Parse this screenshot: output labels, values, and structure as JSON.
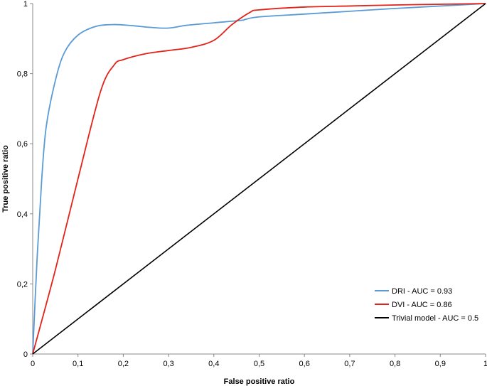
{
  "chart_data": {
    "type": "line",
    "title": "",
    "xlabel": "False positive ratio",
    "ylabel": "True positive ratio",
    "xlim": [
      0,
      1
    ],
    "ylim": [
      0,
      1
    ],
    "grid": false,
    "legend_position": "bottom-right",
    "x_ticks": [
      "0",
      "0,1",
      "0,2",
      "0,3",
      "0,4",
      "0,5",
      "0,6",
      "0,7",
      "0,8",
      "0,9",
      "1"
    ],
    "y_ticks": [
      "0",
      "0,2",
      "0,4",
      "0,6",
      "0,8",
      "1"
    ],
    "series": [
      {
        "name": "DRI - AUC = 0.93",
        "color": "#5b9bd5",
        "x": [
          0,
          0.01,
          0.02,
          0.03,
          0.05,
          0.07,
          0.1,
          0.14,
          0.18,
          0.22,
          0.26,
          0.3,
          0.34,
          0.4,
          0.46,
          0.47,
          0.5,
          0.6,
          0.7,
          0.8,
          0.9,
          1
        ],
        "y": [
          0,
          0.28,
          0.5,
          0.65,
          0.78,
          0.86,
          0.91,
          0.935,
          0.94,
          0.937,
          0.932,
          0.93,
          0.938,
          0.945,
          0.952,
          0.955,
          0.962,
          0.97,
          0.978,
          0.986,
          0.993,
          1
        ]
      },
      {
        "name": "DVI - AUC = 0.86",
        "color": "#e32219",
        "x": [
          0,
          0.05,
          0.1,
          0.15,
          0.18,
          0.2,
          0.25,
          0.3,
          0.35,
          0.4,
          0.44,
          0.48,
          0.5,
          0.6,
          0.7,
          0.8,
          0.9,
          1
        ],
        "y": [
          0,
          0.24,
          0.5,
          0.75,
          0.825,
          0.84,
          0.857,
          0.866,
          0.875,
          0.895,
          0.94,
          0.975,
          0.982,
          0.99,
          0.993,
          0.996,
          0.998,
          1
        ]
      },
      {
        "name": "Trivial model - AUC = 0.5",
        "color": "#000000",
        "x": [
          0,
          1
        ],
        "y": [
          0,
          1
        ]
      }
    ]
  }
}
